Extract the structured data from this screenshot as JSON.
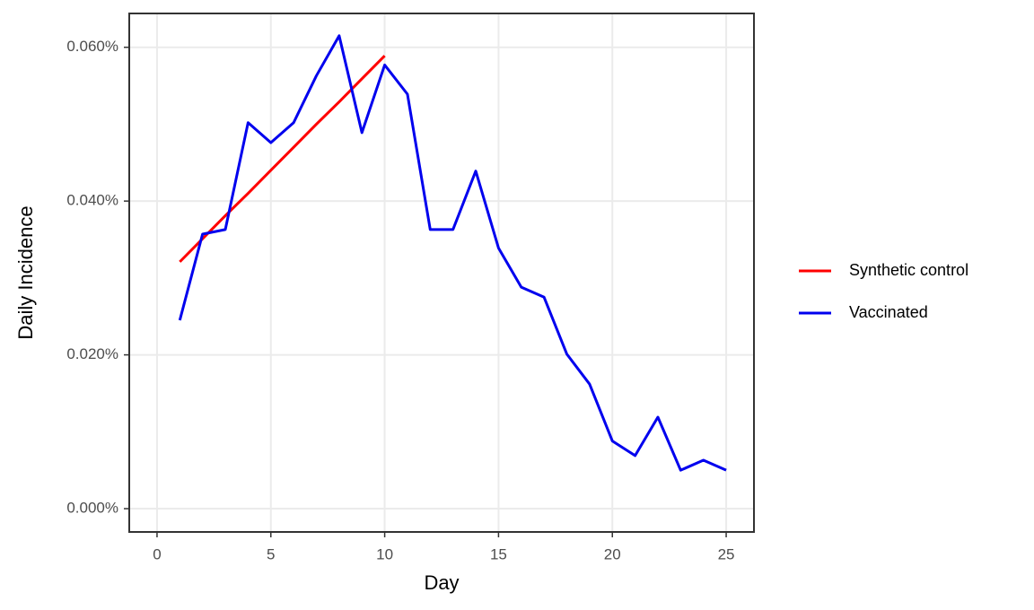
{
  "chart_data": {
    "type": "line",
    "x_label": "Day",
    "y_label": "Daily Incidence",
    "xlim": [
      -1.22,
      26.22
    ],
    "xticks": [
      0,
      5,
      10,
      15,
      20,
      25
    ],
    "ylim": [
      -0.00303,
      0.0644
    ],
    "yticks": [
      {
        "value": 0,
        "label": "0.000%"
      },
      {
        "value": 0.02,
        "label": "0.020%"
      },
      {
        "value": 0.04,
        "label": "0.040%"
      },
      {
        "value": 0.06,
        "label": "0.060%"
      }
    ],
    "grid": true,
    "legend": "right",
    "series": [
      {
        "name": "Synthetic control",
        "color": "#ff0000",
        "x": [
          1,
          2,
          3,
          4,
          5,
          6,
          7,
          8,
          9,
          10
        ],
        "values": [
          0.0321,
          0.0351,
          0.0381,
          0.041,
          0.044,
          0.047,
          0.05,
          0.0529,
          0.0559,
          0.0589
        ]
      },
      {
        "name": "Vaccinated",
        "color": "#0000ee",
        "x": [
          1,
          2,
          3,
          4,
          5,
          6,
          7,
          8,
          9,
          10,
          11,
          12,
          13,
          14,
          15,
          16,
          17,
          18,
          19,
          20,
          21,
          22,
          23,
          24,
          25
        ],
        "values": [
          0.0245,
          0.0357,
          0.0363,
          0.0502,
          0.0476,
          0.0502,
          0.0563,
          0.0615,
          0.0489,
          0.0577,
          0.0539,
          0.0363,
          0.0363,
          0.0439,
          0.0339,
          0.0288,
          0.0275,
          0.0201,
          0.0162,
          0.0088,
          0.0069,
          0.0119,
          0.005,
          0.0063,
          0.005
        ]
      }
    ]
  }
}
